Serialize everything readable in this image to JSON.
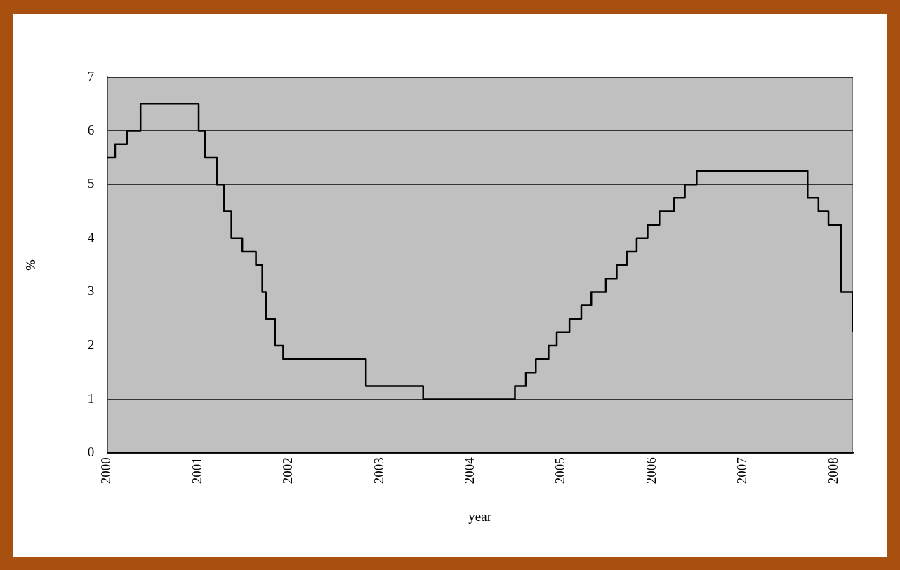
{
  "chart_data": {
    "type": "step",
    "xlabel": "year",
    "ylabel": "%",
    "x": [
      2000.0,
      2000.09,
      2000.22,
      2000.37,
      2001.01,
      2001.08,
      2001.21,
      2001.29,
      2001.37,
      2001.49,
      2001.64,
      2001.71,
      2001.75,
      2001.85,
      2001.94,
      2002.85,
      2003.48,
      2004.49,
      2004.61,
      2004.72,
      2004.86,
      2004.95,
      2005.09,
      2005.22,
      2005.33,
      2005.49,
      2005.61,
      2005.72,
      2005.83,
      2005.95,
      2006.08,
      2006.24,
      2006.36,
      2006.49,
      2007.71,
      2007.83,
      2007.94,
      2008.08,
      2008.21
    ],
    "series": [
      {
        "color": "#000000",
        "values": [
          5.5,
          5.75,
          6.0,
          6.5,
          6.0,
          5.5,
          5.0,
          4.5,
          4.0,
          3.75,
          3.5,
          3.0,
          2.5,
          2.0,
          1.75,
          1.25,
          1.0,
          1.25,
          1.5,
          1.75,
          2.0,
          2.25,
          2.5,
          2.75,
          3.0,
          3.25,
          3.5,
          3.75,
          4.0,
          4.25,
          4.5,
          4.75,
          5.0,
          5.25,
          4.75,
          4.5,
          4.25,
          3.0,
          2.25
        ]
      }
    ],
    "xlim": [
      2000,
      2008.21
    ],
    "xticks": [
      2000,
      2001,
      2002,
      2003,
      2004,
      2005,
      2006,
      2007,
      2008
    ],
    "ylim": [
      0,
      7
    ],
    "yticks": [
      0,
      1,
      2,
      3,
      4,
      5,
      6,
      7
    ],
    "grid": "y",
    "legend": false,
    "marker": "none",
    "line_style": "solid"
  }
}
